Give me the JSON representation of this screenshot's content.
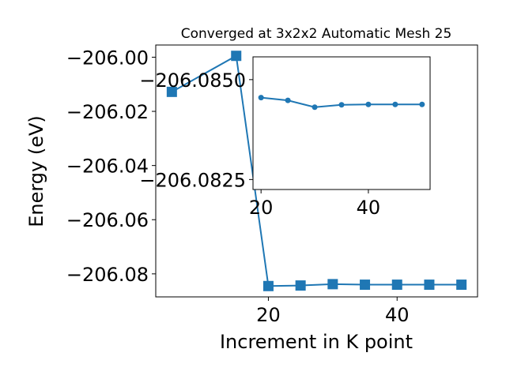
{
  "chart_data": {
    "type": "line",
    "title": "Converged at 3x2x2 Automatic Mesh 25",
    "xlabel": "Increment in K point",
    "ylabel": "Energy (eV)",
    "colors": {
      "series": "#1f77b4"
    },
    "main": {
      "x": [
        5,
        15,
        20,
        25,
        30,
        35,
        40,
        45,
        50
      ],
      "y": [
        -206.0128,
        -205.9995,
        -206.0845,
        -206.0843,
        -206.0838,
        -206.084,
        -206.084,
        -206.084,
        -206.084
      ],
      "xlim": [
        2.5,
        52.5
      ],
      "ylim": [
        -206.0885,
        -205.9955
      ],
      "xticks": [
        20,
        40
      ],
      "xtick_labels": [
        "20",
        "40"
      ],
      "yticks": [
        -206.0,
        -206.02,
        -206.04,
        -206.06,
        -206.08
      ],
      "ytick_labels": [
        "−206.00",
        "−206.02",
        "−206.04",
        "−206.06",
        "−206.08"
      ],
      "marker": "square"
    },
    "inset": {
      "x": [
        20,
        25,
        30,
        35,
        40,
        45,
        50
      ],
      "y": [
        -206.08455,
        -206.08448,
        -206.08431,
        -206.08437,
        -206.08438,
        -206.08438,
        -206.08438
      ],
      "xlim": [
        18.5,
        51.5
      ],
      "ylim": [
        -206.08225,
        -206.08557
      ],
      "xticks": [
        20,
        40
      ],
      "xtick_labels": [
        "20",
        "40"
      ],
      "yticks": [
        -206.085,
        -206.0825
      ],
      "ytick_labels": [
        "−206.0850",
        "−206.0825"
      ],
      "marker": "circle"
    }
  }
}
